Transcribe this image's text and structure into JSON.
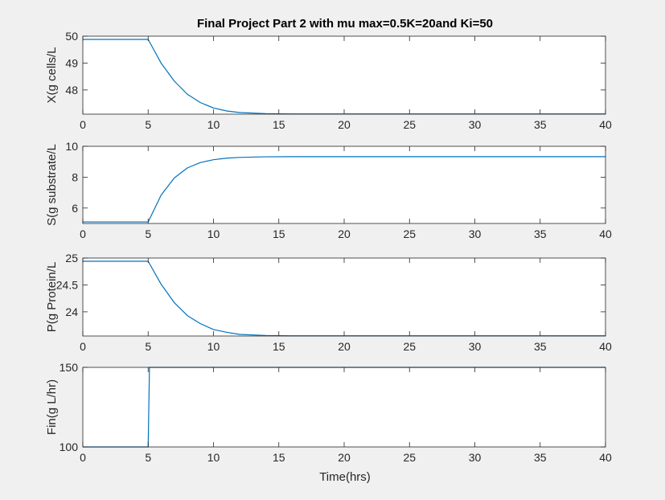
{
  "title": "Final Project Part 2 with mu max=0.5K=20and Ki=50",
  "xlabel": "Time(hrs)",
  "colors": {
    "background": "#f0f0f0",
    "axes_bg": "#ffffff",
    "line": "#0072bd",
    "axis": "#262626"
  },
  "chart_data": [
    {
      "type": "line",
      "ylabel": "X(g cells/L",
      "xlim": [
        0,
        40
      ],
      "ylim": [
        47.1,
        50
      ],
      "xticks": [
        0,
        5,
        10,
        15,
        20,
        25,
        30,
        35,
        40
      ],
      "yticks": [
        48,
        49,
        50
      ],
      "grid": false,
      "step_time": 5,
      "series": [
        {
          "x": [
            0,
            5,
            6,
            7,
            8,
            9,
            10,
            11,
            12,
            14,
            16,
            20,
            40
          ],
          "y": [
            49.88,
            49.88,
            48.99,
            48.33,
            47.84,
            47.53,
            47.33,
            47.22,
            47.16,
            47.12,
            47.11,
            47.11,
            47.11
          ]
        }
      ]
    },
    {
      "type": "line",
      "ylabel": "S(g substrate/L",
      "xlim": [
        0,
        40
      ],
      "ylim": [
        5,
        10
      ],
      "xticks": [
        0,
        5,
        10,
        15,
        20,
        25,
        30,
        35,
        40
      ],
      "yticks": [
        6,
        8,
        10
      ],
      "grid": false,
      "step_time": 5,
      "series": [
        {
          "x": [
            0,
            5,
            6,
            7,
            8,
            9,
            10,
            11,
            12,
            14,
            16,
            20,
            40
          ],
          "y": [
            5.1,
            5.1,
            6.85,
            7.95,
            8.6,
            8.95,
            9.13,
            9.23,
            9.28,
            9.32,
            9.33,
            9.33,
            9.33
          ]
        }
      ]
    },
    {
      "type": "line",
      "ylabel": "P(g Protein/L",
      "xlim": [
        0,
        40
      ],
      "ylim": [
        23.55,
        25
      ],
      "xticks": [
        0,
        5,
        10,
        15,
        20,
        25,
        30,
        35,
        40
      ],
      "yticks": [
        24,
        24.5,
        25
      ],
      "grid": false,
      "step_time": 5,
      "series": [
        {
          "x": [
            0,
            5,
            6,
            7,
            8,
            9,
            10,
            11,
            12,
            14,
            16,
            20,
            40
          ],
          "y": [
            24.94,
            24.94,
            24.51,
            24.17,
            23.93,
            23.78,
            23.67,
            23.62,
            23.58,
            23.56,
            23.555,
            23.555,
            23.555
          ]
        }
      ]
    },
    {
      "type": "line",
      "ylabel": "Fin(g L/hr)",
      "xlim": [
        0,
        40
      ],
      "ylim": [
        100,
        150
      ],
      "xticks": [
        0,
        5,
        10,
        15,
        20,
        25,
        30,
        35,
        40
      ],
      "yticks": [
        100,
        150
      ],
      "grid": false,
      "series": [
        {
          "x": [
            0,
            5,
            5.1,
            40
          ],
          "y": [
            100,
            100,
            150,
            150
          ]
        }
      ]
    }
  ]
}
